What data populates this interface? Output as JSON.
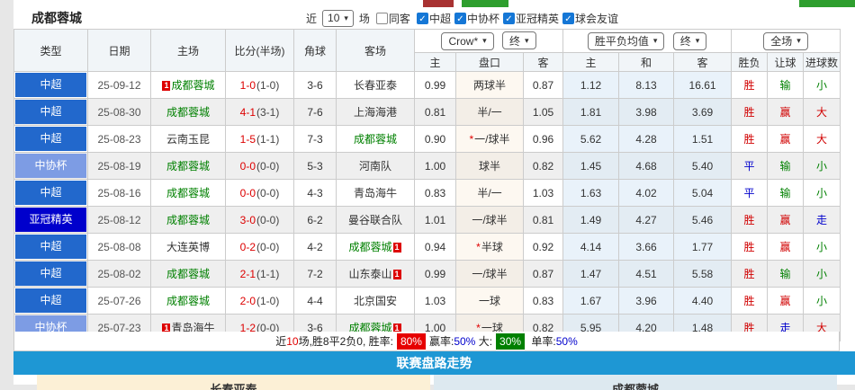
{
  "top": {
    "title": "成都蓉城",
    "filter": {
      "near": "近",
      "count": "10",
      "games": "场",
      "same": "同客",
      "leagues": [
        {
          "label": "中超",
          "checked": true
        },
        {
          "label": "中协杯",
          "checked": true
        },
        {
          "label": "亚冠精英",
          "checked": true
        },
        {
          "label": "球会友谊",
          "checked": true
        }
      ]
    }
  },
  "table": {
    "headers": {
      "type": "类型",
      "date": "日期",
      "home": "主场",
      "score": "比分(半场)",
      "corner": "角球",
      "away": "客场",
      "asia_select": "Crow*",
      "asia_time": "终",
      "europe_select": "胜平负均值",
      "europe_time": "终",
      "scope_select": "全场",
      "asia_home": "主",
      "asia_pan": "盘口",
      "asia_away": "客",
      "euro_home": "主",
      "euro_draw": "和",
      "euro_away": "客",
      "win": "胜负",
      "let": "让球",
      "goal": "进球数"
    },
    "rows": [
      {
        "league": "中超",
        "league_style": "csl",
        "date": "25-09-12",
        "home": "成都蓉城",
        "home_green": true,
        "home_card": "1",
        "ft": "1-0",
        "ht": "(1-0)",
        "corner": "3-6",
        "away": "长春亚泰",
        "away_green": false,
        "away_card": "",
        "asia_home": "0.99",
        "pan": "两球半",
        "pan_star": false,
        "asia_away": "0.87",
        "euro_home": "1.12",
        "euro_draw": "8.13",
        "euro_away": "16.61",
        "result": "胜",
        "result_color": "red",
        "let": "输",
        "let_color": "green",
        "goal": "小",
        "goal_color": "green"
      },
      {
        "league": "中超",
        "league_style": "csl",
        "date": "25-08-30",
        "home": "成都蓉城",
        "home_green": true,
        "home_card": "",
        "ft": "4-1",
        "ht": "(3-1)",
        "corner": "7-6",
        "away": "上海海港",
        "away_green": false,
        "away_card": "",
        "asia_home": "0.81",
        "pan": "半/一",
        "pan_star": false,
        "asia_away": "1.05",
        "euro_home": "1.81",
        "euro_draw": "3.98",
        "euro_away": "3.69",
        "result": "胜",
        "result_color": "red",
        "let": "赢",
        "let_color": "red",
        "goal": "大",
        "goal_color": "red"
      },
      {
        "league": "中超",
        "league_style": "csl",
        "date": "25-08-23",
        "home": "云南玉昆",
        "home_green": false,
        "home_card": "",
        "ft": "1-5",
        "ht": "(1-1)",
        "corner": "7-3",
        "away": "成都蓉城",
        "away_green": true,
        "away_card": "",
        "asia_home": "0.90",
        "pan": "一/球半",
        "pan_star": true,
        "asia_away": "0.96",
        "euro_home": "5.62",
        "euro_draw": "4.28",
        "euro_away": "1.51",
        "result": "胜",
        "result_color": "red",
        "let": "赢",
        "let_color": "red",
        "goal": "大",
        "goal_color": "red"
      },
      {
        "league": "中协杯",
        "league_style": "cup",
        "date": "25-08-19",
        "home": "成都蓉城",
        "home_green": true,
        "home_card": "",
        "ft": "0-0",
        "ht": "(0-0)",
        "corner": "5-3",
        "away": "河南队",
        "away_green": false,
        "away_card": "",
        "asia_home": "1.00",
        "pan": "球半",
        "pan_star": false,
        "asia_away": "0.82",
        "euro_home": "1.45",
        "euro_draw": "4.68",
        "euro_away": "5.40",
        "result": "平",
        "result_color": "blue",
        "let": "输",
        "let_color": "green",
        "goal": "小",
        "goal_color": "green"
      },
      {
        "league": "中超",
        "league_style": "csl",
        "date": "25-08-16",
        "home": "成都蓉城",
        "home_green": true,
        "home_card": "",
        "ft": "0-0",
        "ht": "(0-0)",
        "corner": "4-3",
        "away": "青岛海牛",
        "away_green": false,
        "away_card": "",
        "asia_home": "0.83",
        "pan": "半/一",
        "pan_star": false,
        "asia_away": "1.03",
        "euro_home": "1.63",
        "euro_draw": "4.02",
        "euro_away": "5.04",
        "result": "平",
        "result_color": "blue",
        "let": "输",
        "let_color": "green",
        "goal": "小",
        "goal_color": "green"
      },
      {
        "league": "亚冠精英",
        "league_style": "acl",
        "date": "25-08-12",
        "home": "成都蓉城",
        "home_green": true,
        "home_card": "",
        "ft": "3-0",
        "ht": "(0-0)",
        "corner": "6-2",
        "away": "曼谷联合队",
        "away_green": false,
        "away_card": "",
        "asia_home": "1.01",
        "pan": "一/球半",
        "pan_star": false,
        "asia_away": "0.81",
        "euro_home": "1.49",
        "euro_draw": "4.27",
        "euro_away": "5.46",
        "result": "胜",
        "result_color": "red",
        "let": "赢",
        "let_color": "red",
        "goal": "走",
        "goal_color": "blue"
      },
      {
        "league": "中超",
        "league_style": "csl",
        "date": "25-08-08",
        "home": "大连英博",
        "home_green": false,
        "home_card": "",
        "ft": "0-2",
        "ht": "(0-0)",
        "corner": "4-2",
        "away": "成都蓉城",
        "away_green": true,
        "away_card": "1",
        "asia_home": "0.94",
        "pan": "半球",
        "pan_star": true,
        "asia_away": "0.92",
        "euro_home": "4.14",
        "euro_draw": "3.66",
        "euro_away": "1.77",
        "result": "胜",
        "result_color": "red",
        "let": "赢",
        "let_color": "red",
        "goal": "小",
        "goal_color": "green"
      },
      {
        "league": "中超",
        "league_style": "csl",
        "date": "25-08-02",
        "home": "成都蓉城",
        "home_green": true,
        "home_card": "",
        "ft": "2-1",
        "ht": "(1-1)",
        "corner": "7-2",
        "away": "山东泰山",
        "away_green": false,
        "away_card": "1",
        "asia_home": "0.99",
        "pan": "一/球半",
        "pan_star": false,
        "asia_away": "0.87",
        "euro_home": "1.47",
        "euro_draw": "4.51",
        "euro_away": "5.58",
        "result": "胜",
        "result_color": "red",
        "let": "输",
        "let_color": "green",
        "goal": "小",
        "goal_color": "green"
      },
      {
        "league": "中超",
        "league_style": "csl",
        "date": "25-07-26",
        "home": "成都蓉城",
        "home_green": true,
        "home_card": "",
        "ft": "2-0",
        "ht": "(1-0)",
        "corner": "4-4",
        "away": "北京国安",
        "away_green": false,
        "away_card": "",
        "asia_home": "1.03",
        "pan": "一球",
        "pan_star": false,
        "asia_away": "0.83",
        "euro_home": "1.67",
        "euro_draw": "3.96",
        "euro_away": "4.40",
        "result": "胜",
        "result_color": "red",
        "let": "赢",
        "let_color": "red",
        "goal": "小",
        "goal_color": "green"
      },
      {
        "league": "中协杯",
        "league_style": "cup",
        "date": "25-07-23",
        "home": "青岛海牛",
        "home_green": false,
        "home_card": "1",
        "ft": "1-2",
        "ht": "(0-0)",
        "corner": "3-6",
        "away": "成都蓉城",
        "away_green": true,
        "away_card": "1",
        "asia_home": "1.00",
        "pan": "一球",
        "pan_star": true,
        "asia_away": "0.82",
        "euro_home": "5.95",
        "euro_draw": "4.20",
        "euro_away": "1.48",
        "result": "胜",
        "result_color": "red",
        "let": "走",
        "let_color": "blue",
        "goal": "大",
        "goal_color": "red"
      }
    ]
  },
  "summary": {
    "parts": [
      {
        "text": "近",
        "style": "dark",
        "name": "summary-text"
      },
      {
        "text": "10",
        "style": "red",
        "name": "summary-count"
      },
      {
        "text": "场,胜8平2负0, 胜率:",
        "style": "dark",
        "name": "summary-record"
      },
      {
        "text": "80%",
        "style": "badge-red",
        "name": "win-rate-badge"
      },
      {
        "text": "赢率:",
        "style": "dark",
        "name": "handicap-rate-label"
      },
      {
        "text": "50%",
        "style": "blue",
        "name": "handicap-rate-value"
      },
      {
        "text": " 大:",
        "style": "dark",
        "name": "big-rate-label"
      },
      {
        "text": "30%",
        "style": "badge-green",
        "name": "big-rate-badge"
      },
      {
        "text": " 单率:",
        "style": "dark",
        "name": "odd-rate-label"
      },
      {
        "text": "50%",
        "style": "blue",
        "name": "odd-rate-value"
      }
    ]
  },
  "trend": {
    "title": "联赛盘路走势"
  },
  "bottom": {
    "left": "长春亚泰",
    "right": "成都蓉城"
  },
  "colors": {
    "csl_badge": "#2268cc",
    "cup_badge": "#7d9ce4",
    "acl_badge": "#0000cc",
    "team_green": "#008000",
    "score_red": "#dd0000",
    "result_red": "#d10000",
    "result_blue": "#0000cc",
    "result_green": "#008000",
    "trend_bar_blue": "#1e97d4",
    "win_rate_badge_red": "#e60000",
    "big_rate_badge_green": "#008000"
  }
}
